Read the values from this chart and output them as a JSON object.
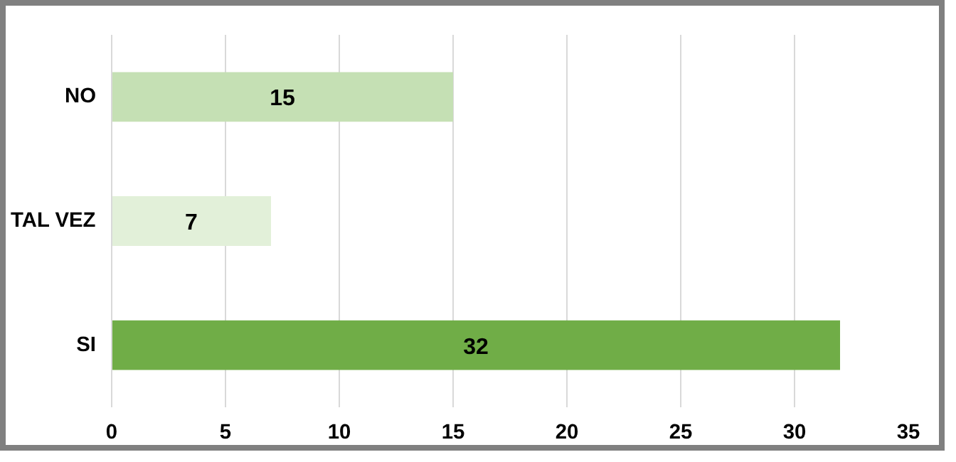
{
  "chart_data": {
    "type": "bar",
    "orientation": "horizontal",
    "categories": [
      "NO",
      "TAL VEZ",
      "SI"
    ],
    "values": [
      15,
      7,
      32
    ],
    "colors": [
      "#c5e0b4",
      "#e2f0d9",
      "#70ad47"
    ],
    "xlim": [
      0,
      35
    ],
    "xticks": [
      0,
      5,
      10,
      15,
      20,
      25,
      30,
      35
    ],
    "grid": "x",
    "data_labels": true
  }
}
